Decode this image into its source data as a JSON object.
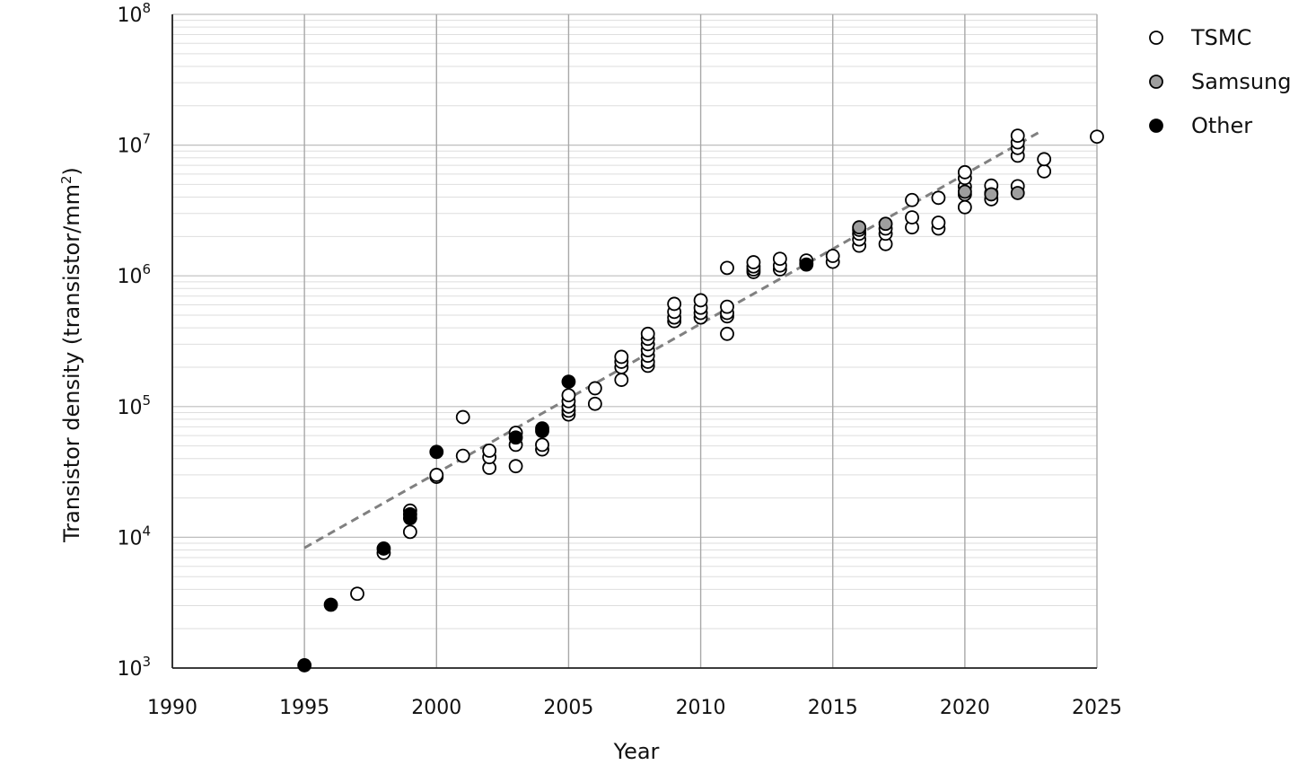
{
  "chart_data": {
    "type": "scatter",
    "title": "",
    "xlabel": "Year",
    "ylabel": "Transistor density (transistor/mm²)",
    "ylabel_main": "Transistor density (transistor/mm",
    "ylabel_sup": "2",
    "ylabel_tail": ")",
    "xlim": [
      1990,
      2025
    ],
    "ylim": [
      1000,
      100000000
    ],
    "yscale": "log",
    "grid": true,
    "legend": "top-right",
    "x_ticks": [
      1990,
      1995,
      2000,
      2005,
      2010,
      2015,
      2020,
      2025
    ],
    "x_tick_labels": [
      "1990",
      "1995",
      "2000",
      "2005",
      "2010",
      "2015",
      "2020",
      "2025"
    ],
    "y_ticks": [
      1000,
      10000,
      100000,
      1000000,
      10000000,
      100000000
    ],
    "y_tick_labels": [
      {
        "base": "10",
        "exp": "3"
      },
      {
        "base": "10",
        "exp": "4"
      },
      {
        "base": "10",
        "exp": "5"
      },
      {
        "base": "10",
        "exp": "6"
      },
      {
        "base": "10",
        "exp": "7"
      },
      {
        "base": "10",
        "exp": "8"
      }
    ],
    "series": [
      {
        "name": "TSMC",
        "fill": "#ffffff",
        "points": [
          [
            1997,
            3700
          ],
          [
            1998,
            7600
          ],
          [
            1999,
            11000
          ],
          [
            1999,
            16000
          ],
          [
            2000,
            29000
          ],
          [
            2000,
            30000
          ],
          [
            2001,
            42000
          ],
          [
            2001,
            83000
          ],
          [
            2002,
            34000
          ],
          [
            2002,
            41000
          ],
          [
            2002,
            46000
          ],
          [
            2003,
            35000
          ],
          [
            2003,
            51000
          ],
          [
            2003,
            63000
          ],
          [
            2004,
            47000
          ],
          [
            2004,
            51000
          ],
          [
            2005,
            87000
          ],
          [
            2005,
            93000
          ],
          [
            2005,
            100000
          ],
          [
            2005,
            110000
          ],
          [
            2005,
            122000
          ],
          [
            2006,
            105000
          ],
          [
            2006,
            138000
          ],
          [
            2007,
            160000
          ],
          [
            2007,
            200000
          ],
          [
            2007,
            220000
          ],
          [
            2007,
            240000
          ],
          [
            2008,
            205000
          ],
          [
            2008,
            220000
          ],
          [
            2008,
            245000
          ],
          [
            2008,
            270000
          ],
          [
            2008,
            300000
          ],
          [
            2008,
            330000
          ],
          [
            2008,
            360000
          ],
          [
            2009,
            450000
          ],
          [
            2009,
            480000
          ],
          [
            2009,
            530000
          ],
          [
            2009,
            610000
          ],
          [
            2010,
            480000
          ],
          [
            2010,
            520000
          ],
          [
            2010,
            570000
          ],
          [
            2010,
            650000
          ],
          [
            2011,
            360000
          ],
          [
            2011,
            490000
          ],
          [
            2011,
            520000
          ],
          [
            2011,
            580000
          ],
          [
            2011,
            1150000
          ],
          [
            2012,
            1070000
          ],
          [
            2012,
            1120000
          ],
          [
            2012,
            1180000
          ],
          [
            2012,
            1270000
          ],
          [
            2013,
            1120000
          ],
          [
            2013,
            1200000
          ],
          [
            2013,
            1350000
          ],
          [
            2014,
            1250000
          ],
          [
            2014,
            1310000
          ],
          [
            2015,
            1280000
          ],
          [
            2015,
            1420000
          ],
          [
            2016,
            1700000
          ],
          [
            2016,
            1900000
          ],
          [
            2016,
            2100000
          ],
          [
            2016,
            2250000
          ],
          [
            2017,
            1750000
          ],
          [
            2017,
            2100000
          ],
          [
            2017,
            2300000
          ],
          [
            2018,
            2350000
          ],
          [
            2018,
            2800000
          ],
          [
            2018,
            3800000
          ],
          [
            2019,
            2300000
          ],
          [
            2019,
            2550000
          ],
          [
            2019,
            3950000
          ],
          [
            2020,
            3350000
          ],
          [
            2020,
            4200000
          ],
          [
            2020,
            4800000
          ],
          [
            2020,
            5600000
          ],
          [
            2020,
            6200000
          ],
          [
            2021,
            3850000
          ],
          [
            2021,
            4300000
          ],
          [
            2021,
            4900000
          ],
          [
            2022,
            4850000
          ],
          [
            2022,
            8300000
          ],
          [
            2022,
            9500000
          ],
          [
            2022,
            10500000
          ],
          [
            2022,
            11800000
          ],
          [
            2023,
            6300000
          ],
          [
            2023,
            7800000
          ],
          [
            2025,
            11600000
          ]
        ]
      },
      {
        "name": "Samsung",
        "fill": "#9e9e9e",
        "points": [
          [
            2016,
            2350000
          ],
          [
            2017,
            2500000
          ],
          [
            2020,
            4400000
          ],
          [
            2021,
            4200000
          ],
          [
            2022,
            4300000
          ]
        ]
      },
      {
        "name": "Other",
        "fill": "#000000",
        "points": [
          [
            1995,
            1050
          ],
          [
            1996,
            3050
          ],
          [
            1998,
            8200
          ],
          [
            1999,
            14000
          ],
          [
            1999,
            15000
          ],
          [
            2000,
            45000
          ],
          [
            2003,
            58000
          ],
          [
            2004,
            65000
          ],
          [
            2004,
            68000
          ],
          [
            2005,
            155000
          ],
          [
            2014,
            1220000
          ]
        ]
      }
    ],
    "trendline": {
      "style": "dashed",
      "color": "#808080",
      "x": [
        1995,
        2022.8
      ],
      "y": [
        8300,
        12500000
      ]
    }
  }
}
